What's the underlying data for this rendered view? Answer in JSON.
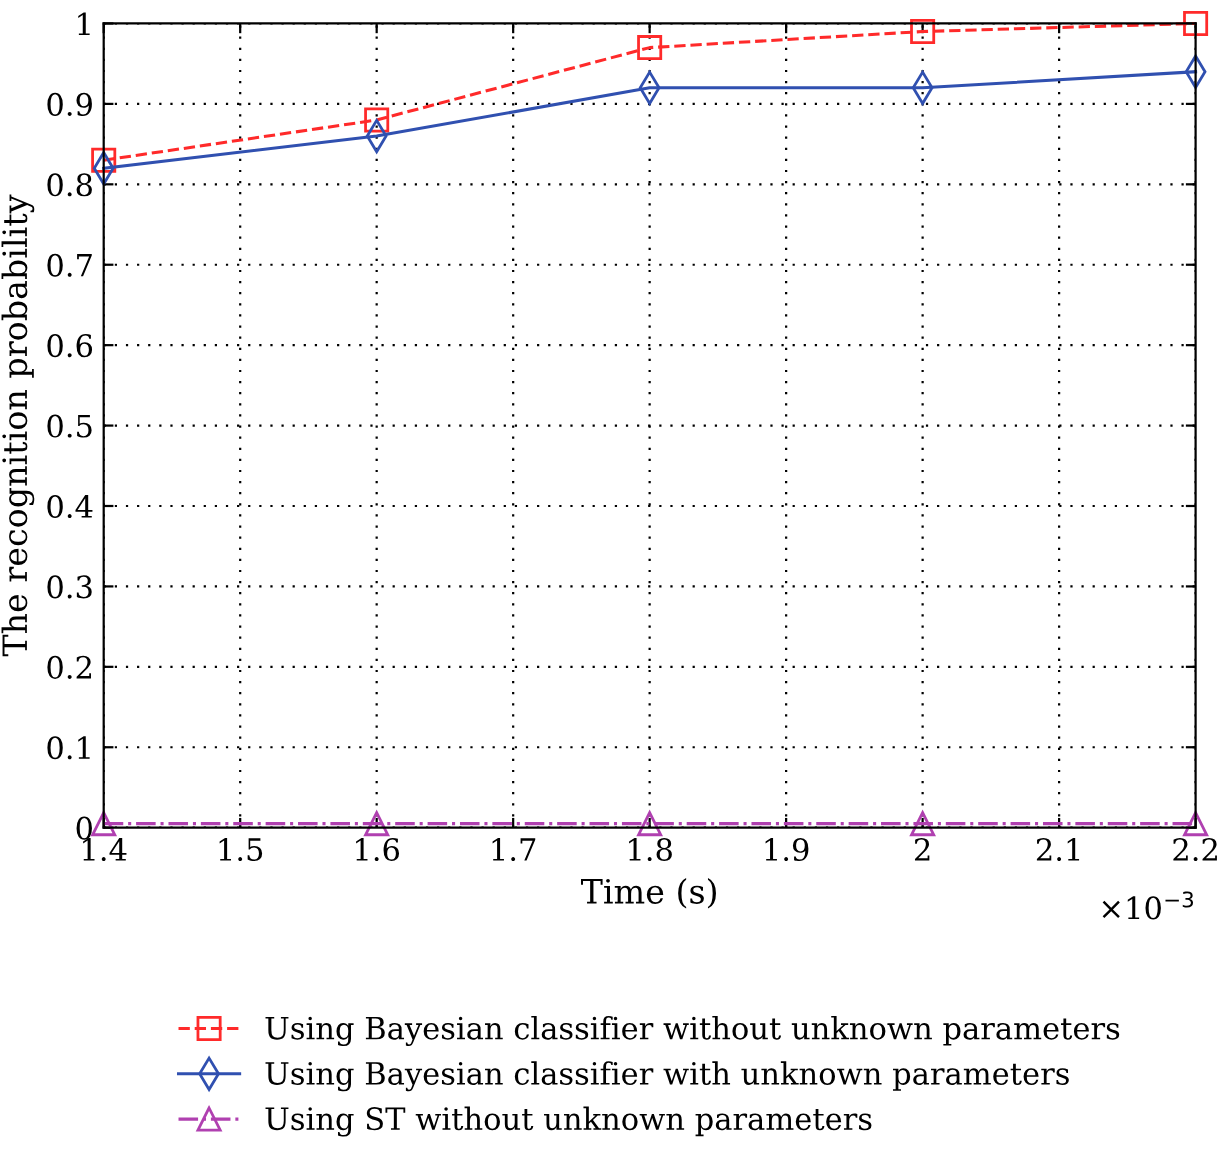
{
  "chart_data": {
    "type": "line",
    "xlabel": "Time (s)",
    "ylabel": "The recognition probability",
    "x": [
      1.4,
      1.6,
      1.8,
      2.0,
      2.2
    ],
    "series": [
      {
        "name": "Using Bayesian classifier without unknown parameters",
        "color": "#ff2a2a",
        "values": [
          0.83,
          0.88,
          0.97,
          0.99,
          1.0
        ],
        "marker": "square",
        "line_style": "dashed"
      },
      {
        "name": "Using Bayesian classifier with unknown parameters",
        "color": "#3050b0",
        "values": [
          0.82,
          0.86,
          0.92,
          0.92,
          0.94
        ],
        "marker": "diamond",
        "line_style": "solid"
      },
      {
        "name": "Using ST without unknown parameters",
        "color": "#b040b0",
        "values": [
          0.005,
          0.005,
          0.005,
          0.005,
          0.005
        ],
        "marker": "triangle",
        "line_style": "dashdot"
      }
    ],
    "xlim": [
      1.4,
      2.2
    ],
    "xticks": [
      1.4,
      1.5,
      1.6,
      1.7,
      1.8,
      1.9,
      2,
      2.1,
      2.2
    ],
    "ylim": [
      0,
      1
    ],
    "yticks": [
      0,
      0.1,
      0.2,
      0.3,
      0.4,
      0.5,
      0.6,
      0.7,
      0.8,
      0.9,
      1
    ],
    "annotations": [
      "×10$^{−3}$"
    ],
    "grid": true,
    "legend": "bottom"
  }
}
